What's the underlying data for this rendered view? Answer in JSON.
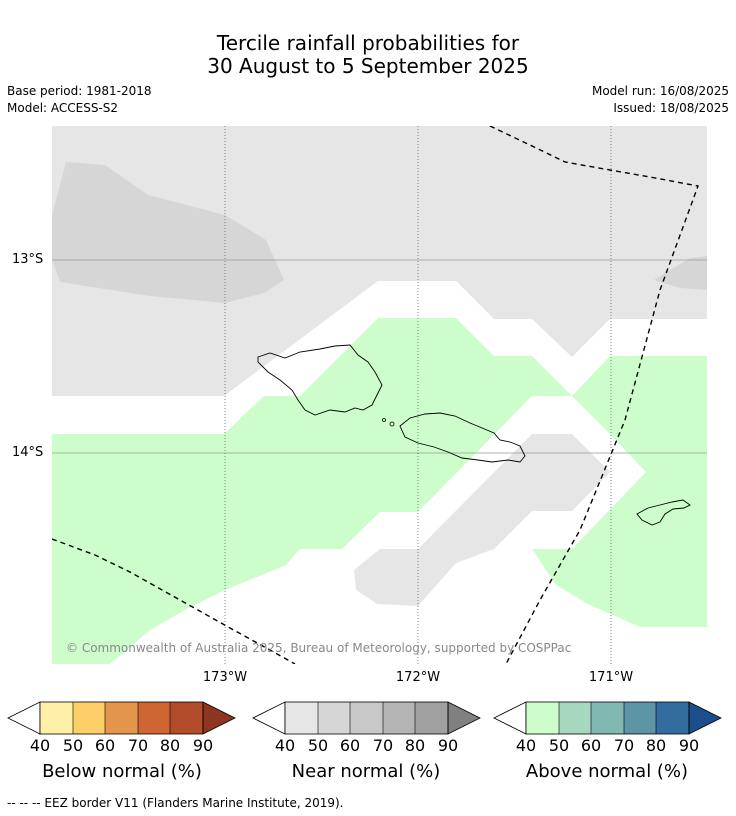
{
  "title_line1": "Tercile rainfall probabilities for",
  "title_line2": "30 August to 5 September 2025",
  "base_period": "Base period: 1981-2018",
  "model": "Model: ACCESS-S2",
  "model_run": "Model run: 16/08/2025",
  "issued": "Issued: 18/08/2025",
  "map": {
    "lat_labels": [
      "13°S",
      "14°S"
    ],
    "lon_labels": [
      "173°W",
      "172°W",
      "171°W"
    ],
    "copyright": "© Commonwealth of Australia 2025, Bureau of Meteorology, supported by COSPPac"
  },
  "colorbars": [
    {
      "title": "Below normal (%)",
      "ticks": [
        "40",
        "50",
        "60",
        "70",
        "80",
        "90"
      ],
      "colors": [
        "#fff0a8",
        "#fecf68",
        "#e3954c",
        "#d06534",
        "#b24c2a",
        "#8e3521"
      ]
    },
    {
      "title": "Near normal (%)",
      "ticks": [
        "40",
        "50",
        "60",
        "70",
        "80",
        "90"
      ],
      "colors": [
        "#e6e6e6",
        "#d6d6d6",
        "#c8c8c8",
        "#b4b4b4",
        "#a0a0a0",
        "#808080"
      ]
    },
    {
      "title": "Above normal (%)",
      "ticks": [
        "40",
        "50",
        "60",
        "70",
        "80",
        "90"
      ],
      "colors": [
        "#ccfdcb",
        "#a6d7bf",
        "#80b8b2",
        "#5c95a6",
        "#336d9f",
        "#1a4e8d"
      ]
    }
  ],
  "footnote": "--  --  -- EEZ border V11 (Flanders Marine Institute, 2019).",
  "colors": {
    "near_normal_fill": "#e6e6e6",
    "near_normal_dark": "#d6d6d6",
    "above_normal_fill": "#ccfdcb"
  }
}
